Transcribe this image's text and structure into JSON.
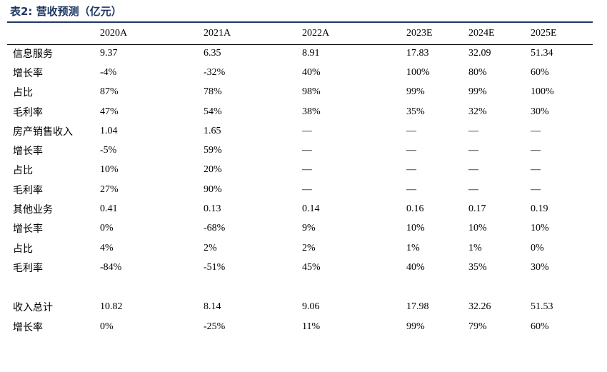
{
  "title": "表2: 营收预测（亿元）",
  "columns": [
    "",
    "2020A",
    "2021A",
    "2022A",
    "2023E",
    "2024E",
    "2025E"
  ],
  "rows": [
    {
      "label": "信息服务",
      "values": [
        "9.37",
        "6.35",
        "8.91",
        "17.83",
        "32.09",
        "51.34"
      ]
    },
    {
      "label": "增长率",
      "values": [
        "-4%",
        "-32%",
        "40%",
        "100%",
        "80%",
        "60%"
      ]
    },
    {
      "label": "占比",
      "values": [
        "87%",
        "78%",
        "98%",
        "99%",
        "99%",
        "100%"
      ]
    },
    {
      "label": "毛利率",
      "values": [
        "47%",
        "54%",
        "38%",
        "35%",
        "32%",
        "30%"
      ]
    },
    {
      "label": "房产销售收入",
      "values": [
        "1.04",
        "1.65",
        "—",
        "—",
        "—",
        "—"
      ]
    },
    {
      "label": "增长率",
      "values": [
        "-5%",
        "59%",
        "—",
        "—",
        "—",
        "—"
      ]
    },
    {
      "label": "占比",
      "values": [
        "10%",
        "20%",
        "—",
        "—",
        "—",
        "—"
      ]
    },
    {
      "label": "毛利率",
      "values": [
        "27%",
        "90%",
        "—",
        "—",
        "—",
        "—"
      ]
    },
    {
      "label": "其他业务",
      "values": [
        "0.41",
        "0.13",
        "0.14",
        "0.16",
        "0.17",
        "0.19"
      ]
    },
    {
      "label": "增长率",
      "values": [
        "0%",
        "-68%",
        "9%",
        "10%",
        "10%",
        "10%"
      ]
    },
    {
      "label": "占比",
      "values": [
        "4%",
        "2%",
        "2%",
        "1%",
        "1%",
        "0%"
      ]
    },
    {
      "label": "毛利率",
      "values": [
        "-84%",
        "-51%",
        "45%",
        "40%",
        "35%",
        "30%"
      ]
    },
    {
      "spacer": true
    },
    {
      "label": "收入总计",
      "values": [
        "10.82",
        "8.14",
        "9.06",
        "17.98",
        "32.26",
        "51.53"
      ]
    },
    {
      "label": "增长率",
      "values": [
        "0%",
        "-25%",
        "11%",
        "99%",
        "79%",
        "60%"
      ]
    }
  ],
  "colors": {
    "title": "#1f3864",
    "rule": "#1f3864"
  }
}
